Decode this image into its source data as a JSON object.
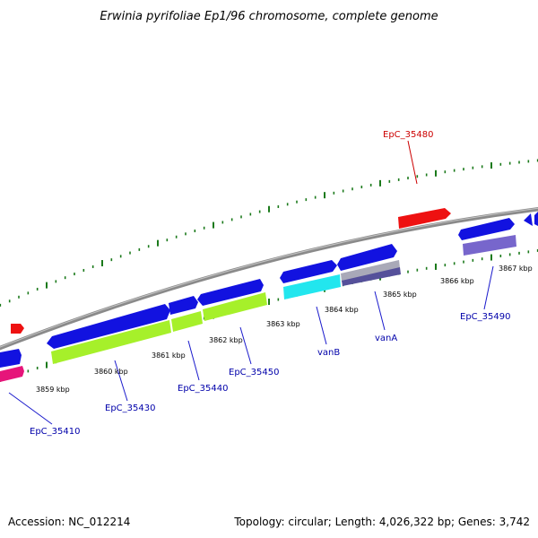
{
  "title": "Erwinia pyrifoliae Ep1/96 chromosome, complete genome",
  "footer": {
    "accession": "Accession: NC_012214",
    "summary": "Topology: circular; Length: 4,026,322 bp; Genes: 3,742"
  },
  "colors": {
    "backbone": "#888888",
    "tick": "#1b7a1b",
    "label_blue": "#0000aa",
    "label_red": "#cc0000",
    "leader": "#1a1acc"
  },
  "axis_ticks": [
    "3859 kbp",
    "3860 kbp",
    "3861 kbp",
    "3862 kbp",
    "3863 kbp",
    "3864 kbp",
    "3865 kbp",
    "3866 kbp",
    "3867 kbp"
  ],
  "gene_labels": [
    {
      "text": "EpC_35410",
      "color": "#0000aa"
    },
    {
      "text": "EpC_35430",
      "color": "#0000aa"
    },
    {
      "text": "EpC_35440",
      "color": "#0000aa"
    },
    {
      "text": "EpC_35450",
      "color": "#0000aa"
    },
    {
      "text": "vanB",
      "color": "#0000aa"
    },
    {
      "text": "vanA",
      "color": "#0000aa"
    },
    {
      "text": "EpC_35490",
      "color": "#0000aa"
    },
    {
      "text": "EpC_35480",
      "color": "#cc0000"
    }
  ],
  "features": [
    {
      "name": "feature-red-small-left",
      "color": "#ee1111"
    },
    {
      "name": "feature-blue-left-edge",
      "color": "#1212e0"
    },
    {
      "name": "feature-magenta-left-edge",
      "color": "#e6157a"
    },
    {
      "name": "gene-epc-35430",
      "color": "#1212e0"
    },
    {
      "name": "gene-epc-35440",
      "color": "#1212e0"
    },
    {
      "name": "gene-epc-35450",
      "color": "#1212e0"
    },
    {
      "name": "cds-green-1",
      "color": "#a6f02a"
    },
    {
      "name": "cds-green-2",
      "color": "#a6f02a"
    },
    {
      "name": "cds-green-3",
      "color": "#a6f02a"
    },
    {
      "name": "gene-vanb",
      "color": "#1212e0"
    },
    {
      "name": "gene-vana",
      "color": "#1212e0"
    },
    {
      "name": "cds-vanb",
      "color": "#22e6ee"
    },
    {
      "name": "cds-vana-grey",
      "color": "#a9a9b8"
    },
    {
      "name": "cds-vana-purple",
      "color": "#55509a"
    },
    {
      "name": "gene-epc-35480",
      "color": "#ee1111"
    },
    {
      "name": "gene-epc-35490",
      "color": "#1212e0"
    },
    {
      "name": "cds-epc-35490",
      "color": "#7766cc"
    },
    {
      "name": "feature-right-edge-a",
      "color": "#1212e0"
    },
    {
      "name": "feature-right-edge-b",
      "color": "#1212e0"
    }
  ]
}
